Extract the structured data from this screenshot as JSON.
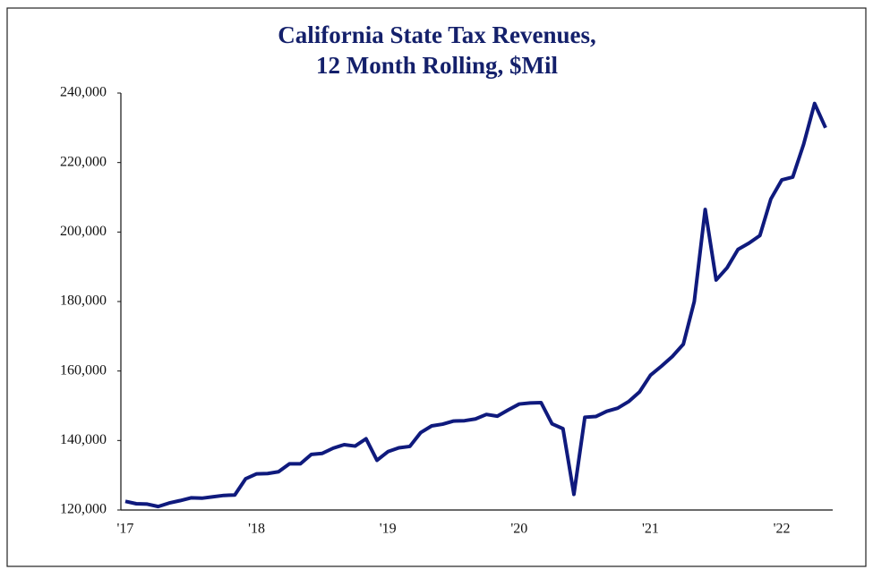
{
  "chart_data": {
    "type": "line",
    "title": [
      "California State Tax Revenues,",
      "12 Month Rolling, $Mil"
    ],
    "categories": [
      "'17",
      null,
      null,
      null,
      null,
      null,
      null,
      null,
      null,
      null,
      null,
      null,
      "'18",
      null,
      null,
      null,
      null,
      null,
      null,
      null,
      null,
      null,
      null,
      null,
      "'19",
      null,
      null,
      null,
      null,
      null,
      null,
      null,
      null,
      null,
      null,
      null,
      "'20",
      null,
      null,
      null,
      null,
      null,
      null,
      null,
      null,
      null,
      null,
      null,
      "'21",
      null,
      null,
      null,
      null,
      null,
      null,
      null,
      null,
      null,
      null,
      null,
      "'22",
      null,
      null,
      null,
      null
    ],
    "series": [
      {
        "name": "California State Tax Revenues",
        "color": "#0f1a7d",
        "values": [
          122500,
          121800,
          121700,
          121000,
          122000,
          122700,
          123500,
          123400,
          123800,
          124200,
          124300,
          129000,
          130400,
          130500,
          131000,
          133300,
          133300,
          136000,
          136300,
          137800,
          138800,
          138400,
          140500,
          134300,
          136800,
          137900,
          138300,
          142300,
          144200,
          144700,
          145600,
          145700,
          146200,
          147500,
          147000,
          148800,
          150500,
          150800,
          150900,
          144800,
          143400,
          124500,
          146700,
          146900,
          148400,
          149300,
          151200,
          154000,
          158800,
          161400,
          164200,
          167700,
          180000,
          206500,
          186200,
          189700,
          195000,
          196800,
          199000,
          209500,
          215000,
          215800,
          225300,
          237000,
          230000
        ]
      }
    ],
    "ylim": [
      120000,
      240000
    ],
    "yticks": [
      {
        "value": 120000,
        "label": "120,000"
      },
      {
        "value": 140000,
        "label": "140,000"
      },
      {
        "value": 160000,
        "label": "160,000"
      },
      {
        "value": 180000,
        "label": "180,000"
      },
      {
        "value": 200000,
        "label": "200,000"
      },
      {
        "value": 220000,
        "label": "220,000"
      },
      {
        "value": 240000,
        "label": "240,000"
      }
    ],
    "grid": false
  }
}
